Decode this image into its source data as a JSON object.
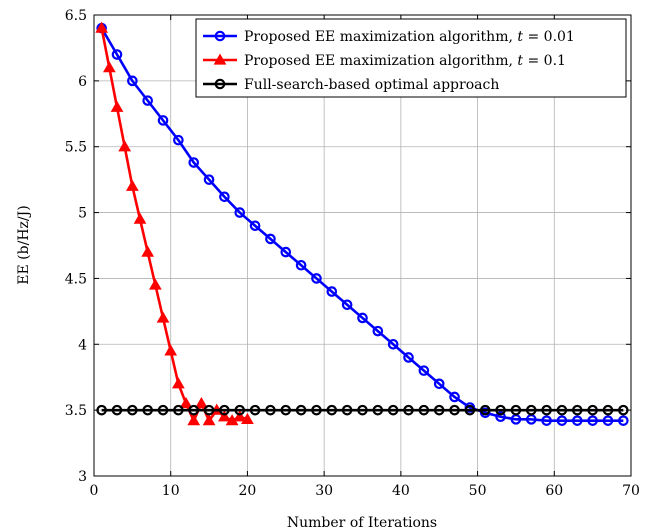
{
  "chart_data": {
    "type": "line",
    "xlabel": "Number of Iterations",
    "ylabel": "EE (b/Hz/J)",
    "xlim": [
      0,
      70
    ],
    "ylim": [
      3,
      6.5
    ],
    "xticks": [
      0,
      10,
      20,
      30,
      40,
      50,
      60,
      70
    ],
    "yticks": [
      3,
      3.5,
      4,
      4.5,
      5,
      5.5,
      6,
      6.5
    ],
    "xtick_labels": [
      "0",
      "10",
      "20",
      "30",
      "40",
      "50",
      "60",
      "70"
    ],
    "ytick_labels": [
      "3",
      "3.5",
      "4",
      "4.5",
      "5",
      "5.5",
      "6",
      "6.5"
    ],
    "grid": true,
    "legend_position": "top-right",
    "series": [
      {
        "name": "Proposed EE maximization algorithm, t = 0.01",
        "color": "#0000ff",
        "marker": "circle",
        "x": [
          1,
          3,
          5,
          7,
          9,
          11,
          13,
          15,
          17,
          19,
          21,
          23,
          25,
          27,
          29,
          31,
          33,
          35,
          37,
          39,
          41,
          43,
          45,
          47,
          49,
          51,
          53,
          55,
          57,
          59,
          61,
          63,
          65,
          67,
          69
        ],
        "y": [
          6.4,
          6.2,
          6.0,
          5.85,
          5.7,
          5.55,
          5.38,
          5.25,
          5.12,
          5.0,
          4.9,
          4.8,
          4.7,
          4.6,
          4.5,
          4.4,
          4.3,
          4.2,
          4.1,
          4.0,
          3.9,
          3.8,
          3.7,
          3.6,
          3.52,
          3.48,
          3.45,
          3.43,
          3.43,
          3.42,
          3.42,
          3.42,
          3.42,
          3.42,
          3.42
        ]
      },
      {
        "name": "Proposed EE maximization algorithm, t = 0.1",
        "color": "#ff0000",
        "marker": "triangle",
        "x": [
          1,
          2,
          3,
          4,
          5,
          6,
          7,
          8,
          9,
          10,
          11,
          12,
          13,
          14,
          15,
          16,
          17,
          18,
          19,
          20
        ],
        "y": [
          6.4,
          6.1,
          5.8,
          5.5,
          5.2,
          4.95,
          4.7,
          4.45,
          4.2,
          3.95,
          3.7,
          3.55,
          3.42,
          3.55,
          3.42,
          3.5,
          3.45,
          3.42,
          3.45,
          3.43
        ]
      },
      {
        "name": "Full-search-based optimal approach",
        "color": "#000000",
        "marker": "circle",
        "x": [
          1,
          3,
          5,
          7,
          9,
          11,
          13,
          15,
          17,
          19,
          21,
          23,
          25,
          27,
          29,
          31,
          33,
          35,
          37,
          39,
          41,
          43,
          45,
          47,
          49,
          51,
          53,
          55,
          57,
          59,
          61,
          63,
          65,
          67,
          69
        ],
        "y": [
          3.5,
          3.5,
          3.5,
          3.5,
          3.5,
          3.5,
          3.5,
          3.5,
          3.5,
          3.5,
          3.5,
          3.5,
          3.5,
          3.5,
          3.5,
          3.5,
          3.5,
          3.5,
          3.5,
          3.5,
          3.5,
          3.5,
          3.5,
          3.5,
          3.5,
          3.5,
          3.5,
          3.5,
          3.5,
          3.5,
          3.5,
          3.5,
          3.5,
          3.5,
          3.5
        ]
      }
    ],
    "legend": [
      {
        "label": "Proposed EE maximization algorithm, ",
        "math_var": "t",
        "math_val": " = 0.01"
      },
      {
        "label": "Proposed EE maximization algorithm, ",
        "math_var": "t",
        "math_val": " = 0.1"
      },
      {
        "label": "Full-search-based optimal approach",
        "math_var": "",
        "math_val": ""
      }
    ]
  }
}
